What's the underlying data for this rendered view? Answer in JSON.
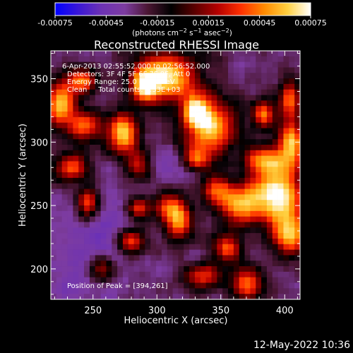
{
  "chart_data": {
    "type": "heatmap",
    "title": "Reconstructed RHESSI Image",
    "xlabel": "Heliocentric X (arcsec)",
    "ylabel": "Heliocentric Y (arcsec)",
    "xlim": [
      217,
      412
    ],
    "ylim": [
      176,
      372
    ],
    "xticks": [
      250,
      300,
      350,
      400
    ],
    "yticks": [
      200,
      250,
      300,
      350
    ],
    "colorbar": {
      "range": [
        -0.00075,
        0.00075
      ],
      "ticks": [
        "-0.00075",
        "-0.00045",
        "-0.00015",
        "0.00015",
        "0.00045",
        "0.00075"
      ],
      "label_parts": [
        "(photons cm",
        "−2",
        " s",
        "−1",
        " asec",
        "−2",
        ")"
      ],
      "colormap": [
        "#0000ff",
        "#3a17d6",
        "#6d32b4",
        "#7d3ca0",
        "#4a1632",
        "#000000",
        "#5a0000",
        "#b40000",
        "#ff3000",
        "#ff8a00",
        "#ffd040",
        "#ffffff"
      ]
    },
    "annotations": {
      "time": "6-Apr-2013 02:55:52.000 to 02:56:52.000",
      "detectors": "Detectors: 3F 4F 5F 6F 7F 8F, Att 0",
      "energy": "Energy Range: 25.0 - 50.0 keV",
      "clean": "Clean     Total counts: 1.33E+03",
      "peak": "Position of Peak = [394,261]"
    },
    "peak": [
      394,
      261
    ],
    "grid": false,
    "hotspots": [
      {
        "x": 224,
        "y": 330,
        "value": 0.0006,
        "sx": 8,
        "sy": 12
      },
      {
        "x": 242,
        "y": 348,
        "value": 0.00045,
        "sx": 8,
        "sy": 7
      },
      {
        "x": 244,
        "y": 312,
        "value": 0.00035,
        "sx": 10,
        "sy": 9
      },
      {
        "x": 274,
        "y": 306,
        "value": 0.0006,
        "sx": 8,
        "sy": 12
      },
      {
        "x": 307,
        "y": 352,
        "value": 0.0007,
        "sx": 17,
        "sy": 13
      },
      {
        "x": 290,
        "y": 344,
        "value": 0.00045,
        "sx": 7,
        "sy": 9
      },
      {
        "x": 341,
        "y": 310,
        "value": 0.0006,
        "sx": 15,
        "sy": 17
      },
      {
        "x": 330,
        "y": 325,
        "value": 0.0004,
        "sx": 7,
        "sy": 8
      },
      {
        "x": 383,
        "y": 322,
        "value": 0.0004,
        "sx": 6,
        "sy": 8
      },
      {
        "x": 404,
        "y": 334,
        "value": 0.00045,
        "sx": 6,
        "sy": 10
      },
      {
        "x": 405,
        "y": 300,
        "value": 0.00055,
        "sx": 7,
        "sy": 12
      },
      {
        "x": 384,
        "y": 286,
        "value": 0.00035,
        "sx": 12,
        "sy": 8
      },
      {
        "x": 394,
        "y": 261,
        "value": 0.00075,
        "sx": 14,
        "sy": 15
      },
      {
        "x": 404,
        "y": 228,
        "value": 0.00055,
        "sx": 10,
        "sy": 12
      },
      {
        "x": 366,
        "y": 250,
        "value": 0.00045,
        "sx": 12,
        "sy": 11
      },
      {
        "x": 355,
        "y": 216,
        "value": 0.00035,
        "sx": 8,
        "sy": 8
      },
      {
        "x": 317,
        "y": 236,
        "value": 0.0004,
        "sx": 8,
        "sy": 10
      },
      {
        "x": 309,
        "y": 250,
        "value": 0.0003,
        "sx": 9,
        "sy": 8
      },
      {
        "x": 279,
        "y": 222,
        "value": 0.0004,
        "sx": 8,
        "sy": 7
      },
      {
        "x": 286,
        "y": 248,
        "value": 0.0003,
        "sx": 6,
        "sy": 6
      },
      {
        "x": 246,
        "y": 252,
        "value": 0.0004,
        "sx": 6,
        "sy": 9
      },
      {
        "x": 233,
        "y": 280,
        "value": 0.00035,
        "sx": 10,
        "sy": 8
      },
      {
        "x": 286,
        "y": 282,
        "value": 0.0003,
        "sx": 7,
        "sy": 8
      },
      {
        "x": 331,
        "y": 286,
        "value": 0.00025,
        "sx": 7,
        "sy": 6
      },
      {
        "x": 346,
        "y": 262,
        "value": 0.0003,
        "sx": 9,
        "sy": 8
      },
      {
        "x": 336,
        "y": 194,
        "value": 0.0003,
        "sx": 10,
        "sy": 7
      },
      {
        "x": 370,
        "y": 189,
        "value": 0.0004,
        "sx": 9,
        "sy": 9
      },
      {
        "x": 257,
        "y": 200,
        "value": 0.00025,
        "sx": 8,
        "sy": 8
      }
    ],
    "dark_regions": [
      {
        "x": 302,
        "y": 284,
        "value": -0.0004,
        "sx": 22,
        "sy": 12
      },
      {
        "x": 260,
        "y": 224,
        "value": -0.0004,
        "sx": 22,
        "sy": 24
      },
      {
        "x": 240,
        "y": 196,
        "value": -0.00035,
        "sx": 20,
        "sy": 18
      },
      {
        "x": 362,
        "y": 288,
        "value": -0.0003,
        "sx": 14,
        "sy": 12
      },
      {
        "x": 326,
        "y": 268,
        "value": -0.00025,
        "sx": 10,
        "sy": 10
      }
    ]
  },
  "timestamp": "12-May-2022 10:36"
}
